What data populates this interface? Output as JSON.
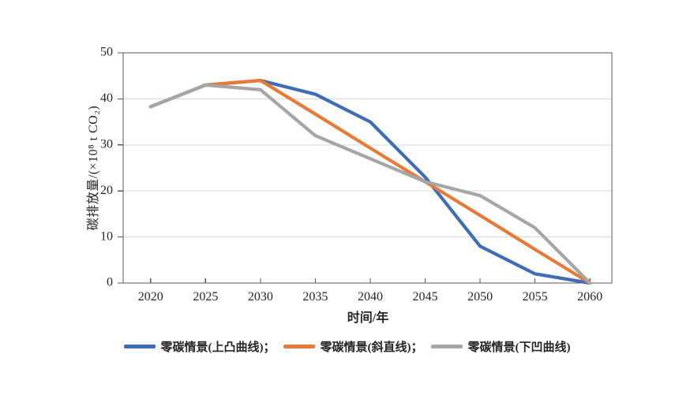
{
  "chart_data": {
    "type": "line",
    "title": "",
    "xlabel": "时间/年",
    "ylabel": "碳排放量/(×10⁸ t CO₂)",
    "x": [
      2020,
      2025,
      2030,
      2035,
      2040,
      2045,
      2050,
      2055,
      2060
    ],
    "xlim": [
      2017.5,
      2062
    ],
    "ylim": [
      0,
      50
    ],
    "yticks": [
      0,
      10,
      20,
      30,
      40,
      50
    ],
    "grid": "horizontal",
    "legend_position": "bottom",
    "series": [
      {
        "name": "零碳情景(上凸曲线)；",
        "color": "#3e6cb5",
        "values": [
          38.3,
          43,
          44,
          41,
          35,
          23,
          8,
          2,
          0
        ]
      },
      {
        "name": "零碳情景(斜直线)；",
        "color": "#e87a38",
        "values": [
          38.3,
          43,
          44,
          36.7,
          29.3,
          22,
          14.7,
          7.3,
          0
        ]
      },
      {
        "name": "零碳情景(下凹曲线)",
        "color": "#a6a6a6",
        "values": [
          38.3,
          43,
          42,
          32,
          27,
          22,
          19,
          12,
          0
        ]
      }
    ]
  },
  "colors": {
    "background": "#ffffff",
    "axis": "#595959",
    "grid": "#d9d9d9",
    "tick_text": "#262626"
  }
}
